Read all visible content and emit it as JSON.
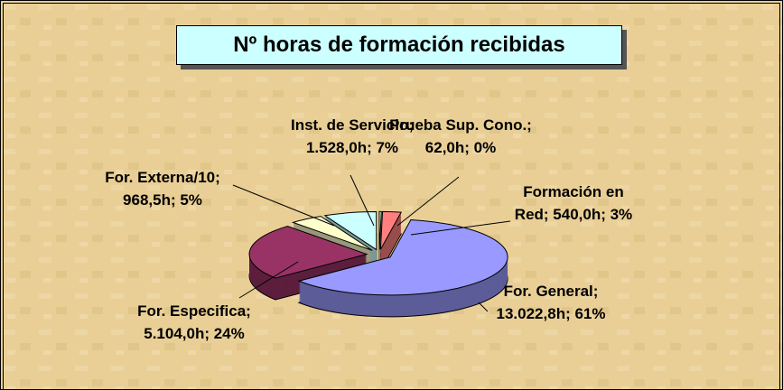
{
  "chart_data": {
    "type": "pie3d",
    "title": "Nº horas de formación recibidas",
    "values": [
      1528.0,
      62.0,
      540.0,
      13022.8,
      5104.0,
      968.5
    ],
    "value_labels": [
      "Inst. de Servicio; 1.528,0h; 7%",
      "Prueba Sup. Cono.; 62,0h; 0%",
      "Formación en Red; 540,0h; 3%",
      "For. General; 13.022,8h; 61%",
      "For. Especifica; 5.104,0h; 24%",
      "For. Externa/10; 968,5h; 5%"
    ],
    "colors": [
      "#ccffff",
      "#ccffcc",
      "#ff7f7f",
      "#9999ff",
      "#993366",
      "#ffffcc"
    ]
  }
}
